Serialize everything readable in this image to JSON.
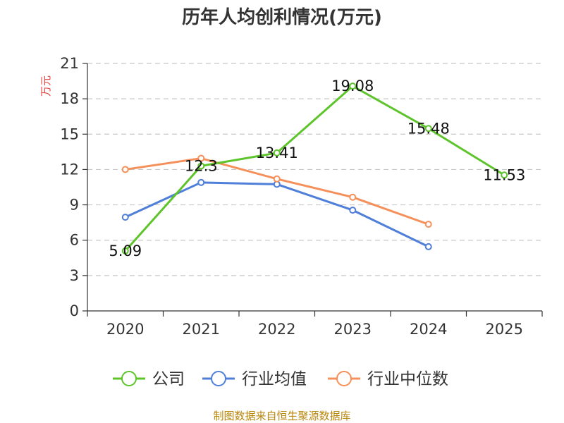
{
  "chart_data": {
    "type": "line",
    "title": "历年人均创利情况(万元)",
    "xlabel": "",
    "ylabel": "万元",
    "categories": [
      "2020",
      "2021",
      "2022",
      "2023",
      "2024",
      "2025"
    ],
    "yticks": [
      0,
      3,
      6,
      9,
      12,
      15,
      18,
      21
    ],
    "ylim": [
      0,
      21
    ],
    "grid": true,
    "legend_position": "bottom",
    "series": [
      {
        "name": "公司",
        "color": "#5ec42b",
        "values": [
          5.09,
          12.3,
          13.41,
          19.08,
          15.48,
          11.53
        ],
        "labels": [
          "5.09",
          "12.3",
          "13.41",
          "19.08",
          "15.48",
          "11.53"
        ]
      },
      {
        "name": "行业均值",
        "color": "#4f7fd9",
        "values": [
          7.95,
          10.9,
          10.75,
          8.55,
          5.45,
          null
        ]
      },
      {
        "name": "行业中位数",
        "color": "#f5905a",
        "values": [
          12.0,
          12.95,
          11.2,
          9.65,
          7.35,
          null
        ]
      }
    ],
    "source": "制图数据来自恒生聚源数据库"
  }
}
